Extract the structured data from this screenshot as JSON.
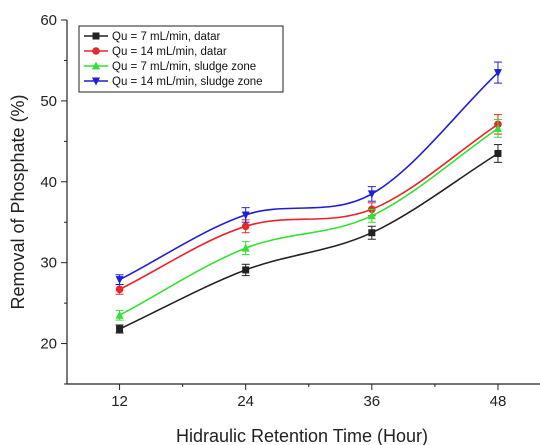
{
  "chart_data": {
    "type": "line",
    "xlabel": "Hidraulic Retention Time (Hour)",
    "ylabel": "Removal of Phosphate (%)",
    "x": [
      12,
      24,
      36,
      48
    ],
    "xlim": [
      7,
      52
    ],
    "ylim": [
      15,
      60
    ],
    "xticks": [
      12,
      24,
      36,
      48
    ],
    "yticks": [
      20,
      30,
      40,
      50,
      60
    ],
    "grid": false,
    "legend_position": "top-left",
    "series": [
      {
        "name": "Qu = 7 mL/min, datar",
        "values": [
          21.8,
          29.1,
          33.7,
          43.5
        ],
        "errors": [
          0.5,
          0.7,
          0.8,
          1.1
        ],
        "color": "#222222",
        "marker": "square"
      },
      {
        "name": "Qu = 14 mL/min, datar",
        "values": [
          26.7,
          34.5,
          36.6,
          47.1
        ],
        "errors": [
          0.6,
          0.8,
          0.8,
          1.2
        ],
        "color": "#e8262b",
        "marker": "circle"
      },
      {
        "name": "Qu = 7 mL/min, sludge zone",
        "values": [
          23.5,
          31.8,
          35.8,
          46.6
        ],
        "errors": [
          0.6,
          0.8,
          0.8,
          1.1
        ],
        "color": "#33e033",
        "marker": "triangle-up"
      },
      {
        "name": "Qu = 14 mL/min, sludge zone",
        "values": [
          27.9,
          35.9,
          38.5,
          53.5
        ],
        "errors": [
          0.6,
          0.9,
          0.9,
          1.3
        ],
        "color": "#1e1ed6",
        "marker": "triangle-down"
      }
    ]
  }
}
